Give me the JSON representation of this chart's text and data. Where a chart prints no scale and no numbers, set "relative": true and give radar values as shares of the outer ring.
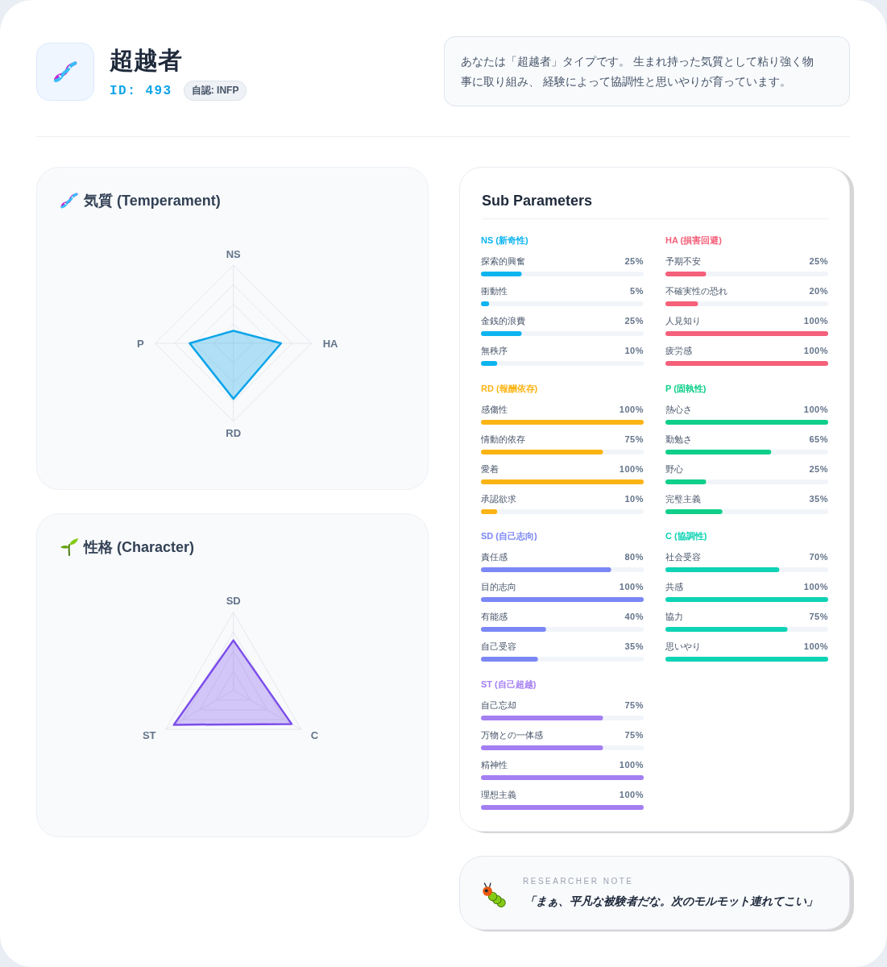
{
  "chart_data": [
    {
      "type": "other",
      "title": "超越者",
      "subtitle": "ID: 493",
      "annotations": [
        "自認: INFP",
        "あなたは「超越者」タイプです。 生まれ持った気質として粘り強く物事に取り組み、 経験によって協調性と思いやりが育っています。"
      ]
    },
    {
      "type": "radar",
      "title": "気質 (Temperament)",
      "categories": [
        "NS",
        "HA",
        "RD",
        "P"
      ],
      "relative": true,
      "grid": true,
      "series": [
        {
          "color": "#0ea5e9",
          "values": [
            0.16,
            0.61,
            0.71,
            0.56
          ]
        }
      ]
    },
    {
      "type": "radar",
      "title": "性格 (Character)",
      "categories": [
        "SD",
        "C",
        "ST"
      ],
      "relative": true,
      "grid": true,
      "series": [
        {
          "color": "#7c4dea",
          "values": [
            0.64,
            0.86,
            0.88
          ]
        }
      ]
    },
    {
      "type": "other",
      "title": "Sub Parameters"
    },
    {
      "type": "bar",
      "orientation": "horizontal",
      "title": "NS (新奇性)",
      "categories": [
        "探索的興奮",
        "衝動性",
        "金銭的浪費",
        "無秩序"
      ],
      "values": [
        25,
        5,
        25,
        10
      ],
      "value_labels": [
        "25%",
        "5%",
        "25%",
        "10%"
      ],
      "color": "#0cb4f0",
      "xlim": [
        0,
        100
      ],
      "tick_labels": "y"
    },
    {
      "type": "bar",
      "orientation": "horizontal",
      "title": "HA (損害回避)",
      "categories": [
        "予期不安",
        "不確実性の恐れ",
        "人見知り",
        "疲労感"
      ],
      "values": [
        25,
        20,
        100,
        100
      ],
      "value_labels": [
        "25%",
        "20%",
        "100%",
        "100%"
      ],
      "color": "#f5607a",
      "xlim": [
        0,
        100
      ],
      "tick_labels": "y"
    },
    {
      "type": "bar",
      "orientation": "horizontal",
      "title": "RD (報酬依存)",
      "categories": [
        "感傷性",
        "情動的依存",
        "愛着",
        "承認欲求"
      ],
      "values": [
        100,
        75,
        100,
        10
      ],
      "value_labels": [
        "100%",
        "75%",
        "100%",
        "10%"
      ],
      "color": "#fbb414",
      "xlim": [
        0,
        100
      ],
      "tick_labels": "y"
    },
    {
      "type": "bar",
      "orientation": "horizontal",
      "title": "P (固執性)",
      "categories": [
        "熱心さ",
        "勤勉さ",
        "野心",
        "完璧主義"
      ],
      "values": [
        100,
        65,
        25,
        35
      ],
      "value_labels": [
        "100%",
        "65%",
        "25%",
        "35%"
      ],
      "color": "#0fcf8a",
      "xlim": [
        0,
        100
      ],
      "tick_labels": "y"
    },
    {
      "type": "bar",
      "orientation": "horizontal",
      "title": "SD (自己志向)",
      "categories": [
        "責任感",
        "目的志向",
        "有能感",
        "自己受容"
      ],
      "values": [
        80,
        100,
        40,
        35
      ],
      "value_labels": [
        "80%",
        "100%",
        "40%",
        "35%"
      ],
      "color": "#7b87f5",
      "xlim": [
        0,
        100
      ],
      "tick_labels": "y"
    },
    {
      "type": "bar",
      "orientation": "horizontal",
      "title": "C (協調性)",
      "categories": [
        "社会受容",
        "共感",
        "協力",
        "思いやり"
      ],
      "values": [
        70,
        100,
        75,
        100
      ],
      "value_labels": [
        "70%",
        "100%",
        "75%",
        "100%"
      ],
      "color": "#0ed3b5",
      "xlim": [
        0,
        100
      ],
      "tick_labels": "y"
    },
    {
      "type": "bar",
      "orientation": "horizontal",
      "title": "ST (自己超越)",
      "categories": [
        "自己忘却",
        "万物との一体感",
        "精神性",
        "理想主義"
      ],
      "values": [
        75,
        75,
        100,
        100
      ],
      "value_labels": [
        "75%",
        "75%",
        "100%",
        "100%"
      ],
      "color": "#a47ff2",
      "xlim": [
        0,
        100
      ],
      "tick_labels": "y"
    },
    {
      "type": "other",
      "title": "RESEARCHER NOTE",
      "annotations": [
        "「まぁ、平凡な被験者だな。次のモルモット連れてこい」"
      ]
    }
  ]
}
